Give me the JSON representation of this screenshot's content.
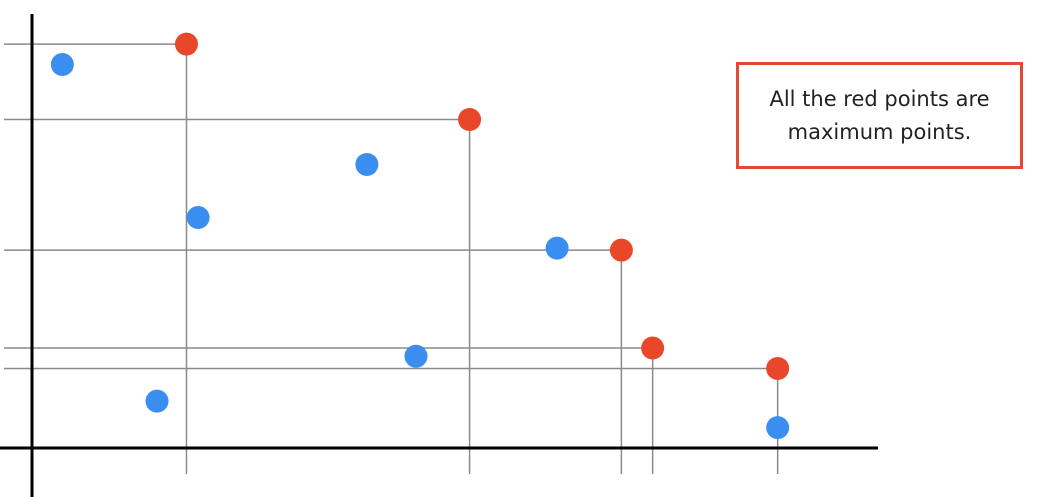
{
  "colors": {
    "maximum_point": "#e8472a",
    "other_point": "#3a8ef0",
    "guide_line": "#8a8a8a",
    "axis": "#000000",
    "callout_border": "#e24a33"
  },
  "callout": {
    "text": "All the red points are\nmaximum points."
  },
  "chart_data": {
    "type": "scatter",
    "xlim": [
      0,
      100
    ],
    "ylim": [
      0,
      100
    ],
    "grid": false,
    "series": [
      {
        "role": "maximum",
        "points": [
          {
            "x": 17.3,
            "y": 99.0
          },
          {
            "x": 49.0,
            "y": 80.5
          },
          {
            "x": 66.0,
            "y": 48.5
          },
          {
            "x": 69.5,
            "y": 24.5
          },
          {
            "x": 83.5,
            "y": 19.5
          }
        ]
      },
      {
        "role": "other",
        "points": [
          {
            "x": 3.4,
            "y": 94.0
          },
          {
            "x": 14.0,
            "y": 11.5
          },
          {
            "x": 18.6,
            "y": 56.5
          },
          {
            "x": 37.5,
            "y": 69.5
          },
          {
            "x": 43.0,
            "y": 22.5
          },
          {
            "x": 58.8,
            "y": 49.0
          },
          {
            "x": 83.5,
            "y": 5.0
          }
        ]
      }
    ]
  }
}
